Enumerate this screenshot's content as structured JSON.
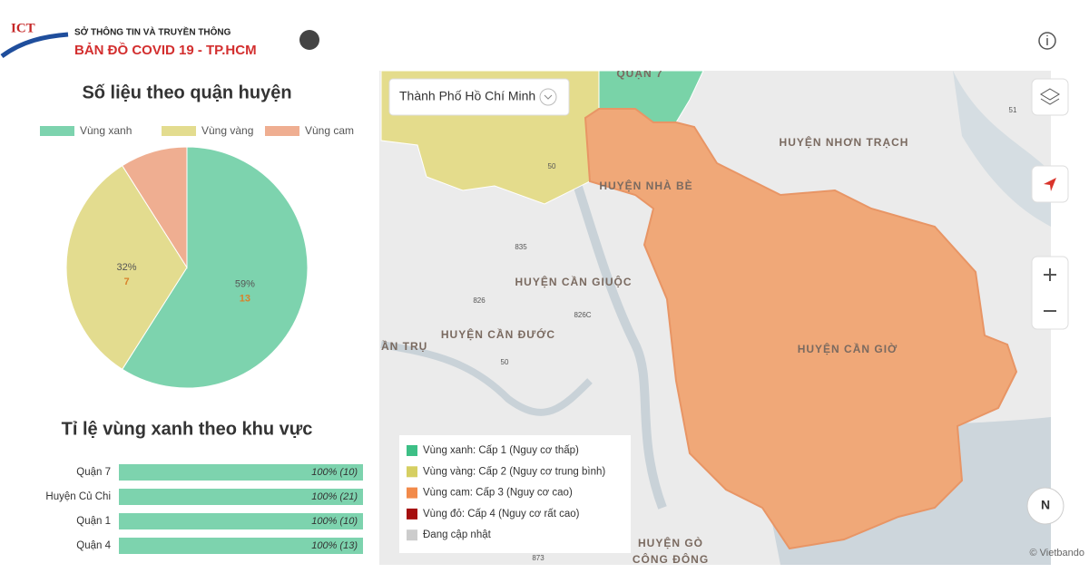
{
  "header": {
    "logo": "ICT",
    "org": "SỞ THÔNG TIN VÀ TRUYỀN THÔNG",
    "title": "BẢN ĐỒ  COVID 19 - TP.HCM"
  },
  "chart_data": [
    {
      "type": "pie",
      "title": "Số liệu theo quận huyện",
      "categories": [
        "Vùng xanh",
        "Vùng vàng",
        "Vùng cam"
      ],
      "values": [
        59,
        32,
        9
      ],
      "value_labels": [
        "59%",
        "32%",
        null
      ],
      "counts": [
        13,
        7,
        null
      ],
      "colors": [
        "#7dd3ae",
        "#e3dc8f",
        "#efae91"
      ],
      "count_color": "#d9822b"
    },
    {
      "type": "bar",
      "orientation": "horizontal",
      "title": "Tỉ lệ vùng xanh theo khu vực",
      "categories": [
        "Quận 7",
        "Huyện Củ Chi",
        "Quận 1",
        "Quận 4"
      ],
      "values": [
        100,
        100,
        100,
        100
      ],
      "value_labels": [
        "100% (10)",
        "100% (21)",
        "100% (10)",
        "100% (13)"
      ],
      "xlim": [
        0,
        100
      ],
      "color": "#7dd3ae"
    }
  ],
  "map": {
    "selector": "Thành Phố Hồ Chí Minh",
    "places": [
      {
        "label": "HUYỆN NHƠN TRẠCH"
      },
      {
        "label": "HUYỆN NHÀ BÈ"
      },
      {
        "label": "HUYỆN CẦN GIUỘC"
      },
      {
        "label": "HUYỆN CẦN ĐƯỚC"
      },
      {
        "label": "ẦN TRỤ"
      },
      {
        "label": "HUYỆN CẦN GIỜ"
      },
      {
        "label": "HUYỆN GÒ"
      },
      {
        "label": "CÔNG ĐÔNG"
      },
      {
        "label": "QUẬN 7"
      }
    ],
    "roads": [
      "835",
      "826",
      "826C",
      "50",
      "51",
      "50",
      "873"
    ],
    "legend": [
      {
        "label": "Vùng xanh: Cấp 1 (Nguy cơ thấp)",
        "color": "#3dbf86"
      },
      {
        "label": "Vùng vàng: Cấp 2 (Nguy cơ trung bình)",
        "color": "#d6cf62"
      },
      {
        "label": "Vùng cam: Cấp 3 (Nguy cơ cao)",
        "color": "#f28a4a"
      },
      {
        "label": "Vùng đỏ: Cấp 4 (Nguy cơ rất cao)",
        "color": "#a50f0f"
      },
      {
        "label": "Đang cập nhật",
        "color": "#cccccc"
      }
    ],
    "compass": "N",
    "attribution": "© Vietbando"
  }
}
